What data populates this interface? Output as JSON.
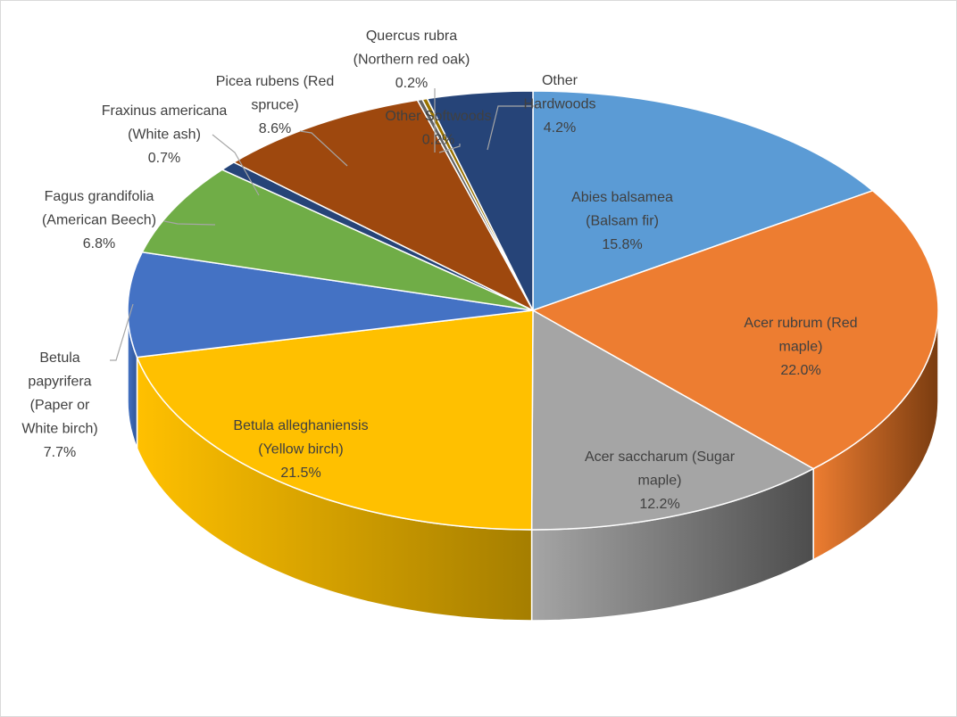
{
  "chart_data": {
    "type": "pie",
    "style": "3d",
    "start_angle_deg": 0,
    "direction": "clockwise",
    "slices": [
      {
        "label": [
          "Abies balsamea",
          "(Balsam fir)",
          "15.8%"
        ],
        "value": 15.8,
        "color": "#5b9bd5",
        "side_color": "#41719c",
        "label_position": "inside"
      },
      {
        "label": [
          "Acer rubrum (Red",
          "maple)",
          "22.0%"
        ],
        "value": 22.0,
        "color": "#ed7d31",
        "side_color": "#7a3c10",
        "label_position": "inside"
      },
      {
        "label": [
          "Acer saccharum (Sugar",
          "maple)",
          "12.2%"
        ],
        "value": 12.2,
        "color": "#a5a5a5",
        "side_color": "#4d4d4d",
        "label_position": "inside"
      },
      {
        "label": [
          "Betula alleghaniensis",
          "(Yellow birch)",
          "21.5%"
        ],
        "value": 21.5,
        "color": "#ffc000",
        "side_color": "#a57e00",
        "label_position": "inside"
      },
      {
        "label": [
          "Betula",
          "papyrifera",
          "(Paper or",
          "White birch)",
          "7.7%"
        ],
        "value": 7.7,
        "color": "#4472c4",
        "side_color": "#2f5597",
        "label_position": "outside"
      },
      {
        "label": [
          "Fagus grandifolia",
          "(American Beech)",
          "6.8%"
        ],
        "value": 6.8,
        "color": "#70ad47",
        "side_color": "#4e7a31",
        "label_position": "outside"
      },
      {
        "label": [
          "Fraxinus americana",
          "(White ash)",
          "0.7%"
        ],
        "value": 0.7,
        "color": "#264478",
        "side_color": "#1a2f54",
        "label_position": "outside"
      },
      {
        "label": [
          "Picea rubens (Red",
          "spruce)",
          "8.6%"
        ],
        "value": 8.6,
        "color": "#9e480e",
        "side_color": "#6b300a",
        "label_position": "outside"
      },
      {
        "label": [
          "Other Softwoods",
          "0.2%"
        ],
        "value": 0.2,
        "color": "#636363",
        "side_color": "#404040",
        "label_position": "outside"
      },
      {
        "label": [
          "Quercus rubra",
          "(Northern red oak)",
          "0.2%"
        ],
        "value": 0.2,
        "color": "#997300",
        "side_color": "#664d00",
        "label_position": "outside"
      },
      {
        "label": [
          "Other",
          "Hardwoods",
          "4.2%"
        ],
        "value": 4.2,
        "color": "#264478",
        "side_color": "#1a2f54",
        "label_position": "outside"
      }
    ],
    "title": "",
    "legend": "none"
  }
}
